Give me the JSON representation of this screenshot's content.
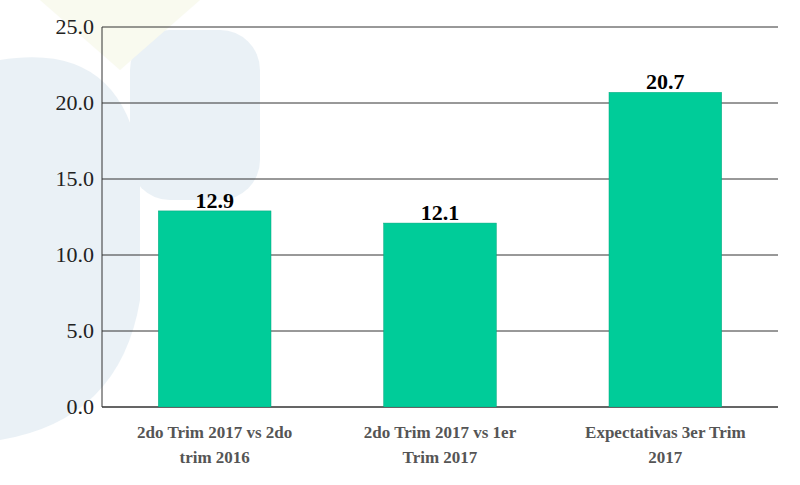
{
  "chart_data": {
    "type": "bar",
    "categories": [
      "2do Trim 2017 vs 2do trim 2016",
      "2do Trim 2017 vs 1er Trim 2017",
      "Expectativas 3er Trim 2017"
    ],
    "values": [
      12.9,
      12.1,
      20.7
    ],
    "color": "#00cc99",
    "ylim": [
      0,
      25
    ],
    "yticks": [
      {
        "value": 0,
        "label": "0.0"
      },
      {
        "value": 5,
        "label": "5.0"
      },
      {
        "value": 10,
        "label": "10.0"
      },
      {
        "value": 15,
        "label": "15.0"
      },
      {
        "value": 20,
        "label": "20.0"
      },
      {
        "value": 25,
        "label": "25.0"
      }
    ],
    "grid": true,
    "data_labels": true
  }
}
